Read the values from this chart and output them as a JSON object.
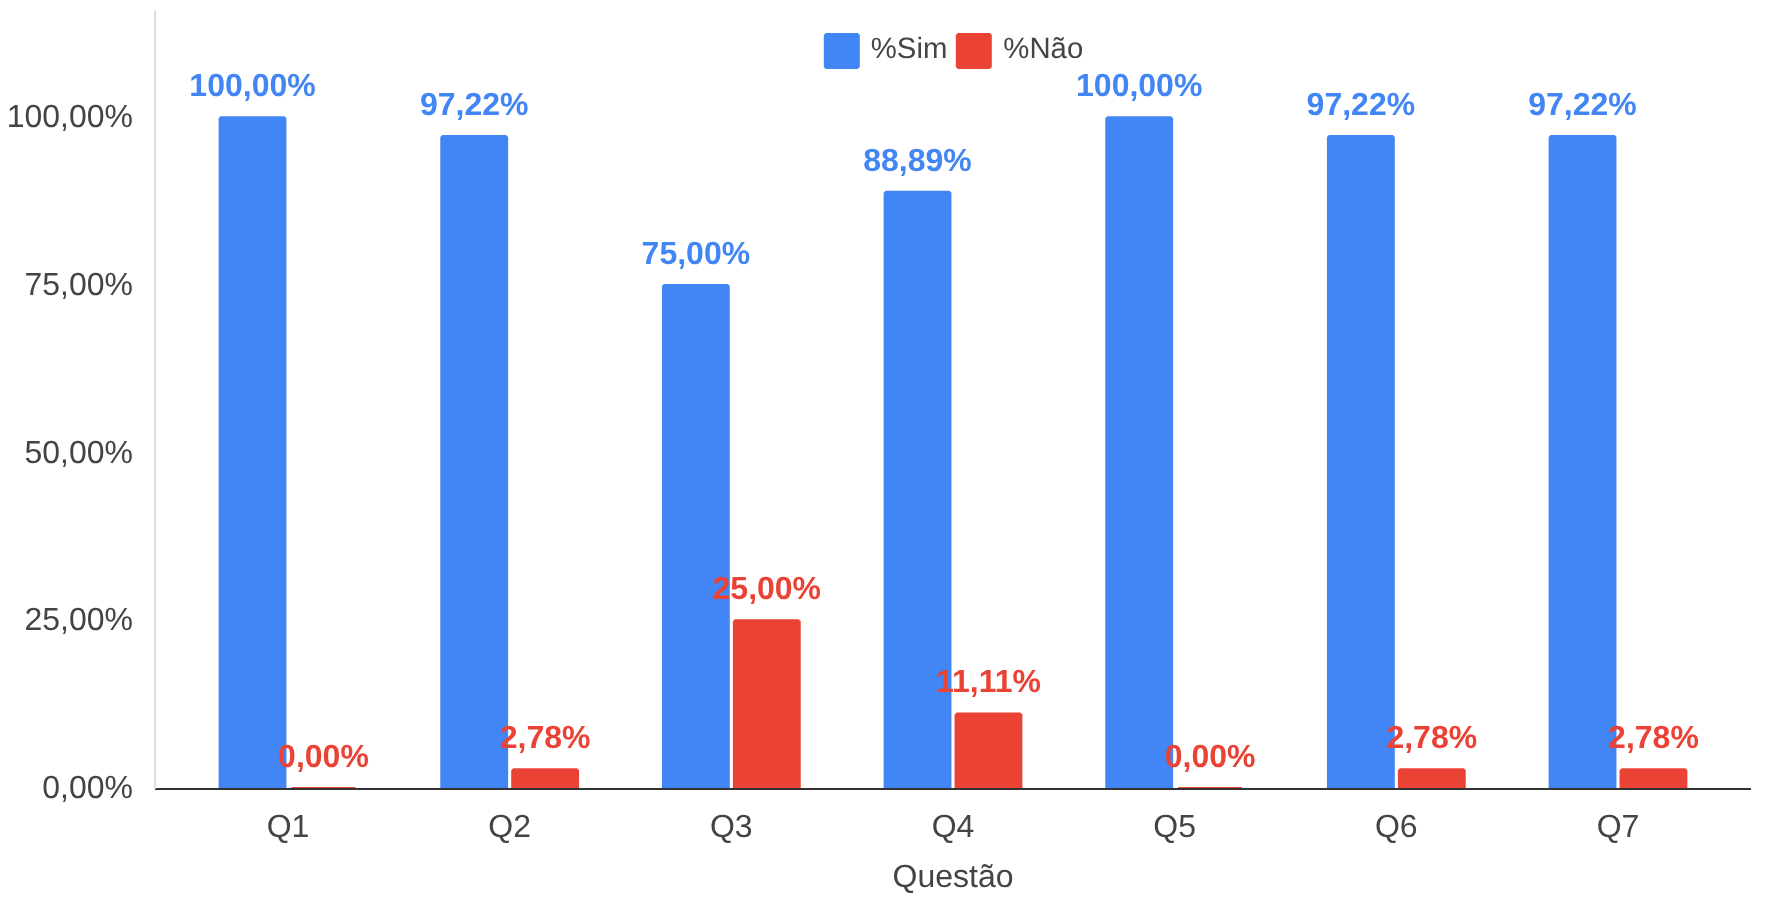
{
  "chart_data": {
    "type": "bar",
    "xlabel": "Questão",
    "categories": [
      "Q1",
      "Q2",
      "Q3",
      "Q4",
      "Q5",
      "Q6",
      "Q7"
    ],
    "series": [
      {
        "name": "%Sim",
        "color": "#4285f4",
        "values": [
          100,
          97.22,
          75,
          88.89,
          100,
          97.22,
          97.22
        ],
        "value_labels": [
          "100,00%",
          "97,22%",
          "75,00%",
          "88,89%",
          "100,00%",
          "97,22%",
          "97,22%"
        ]
      },
      {
        "name": "%Não",
        "color": "#ea4335",
        "values": [
          0,
          2.78,
          25,
          11.11,
          0,
          2.78,
          2.78
        ],
        "value_labels": [
          "0,00%",
          "2,78%",
          "25,00%",
          "11,11%",
          "0,00%",
          "2,78%",
          "2,78%"
        ]
      }
    ],
    "ylim": [
      0,
      116
    ],
    "yticks": [
      {
        "value": 0,
        "label": "0,00%"
      },
      {
        "value": 25,
        "label": "25,00%"
      },
      {
        "value": 50,
        "label": "50,00%"
      },
      {
        "value": 75,
        "label": "75,00%"
      },
      {
        "value": 100,
        "label": "100,00%"
      }
    ],
    "grid": false,
    "legend": "top"
  }
}
